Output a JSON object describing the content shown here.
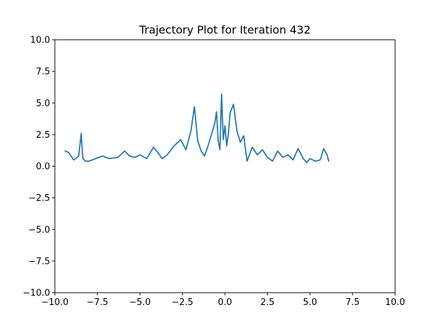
{
  "chart_data": {
    "type": "line",
    "title": "Trajectory Plot for Iteration 432",
    "xlabel": "",
    "ylabel": "",
    "xlim": [
      -10.0,
      10.0
    ],
    "ylim": [
      -10.0,
      10.0
    ],
    "xticks": [
      -10.0,
      -7.5,
      -5.0,
      -2.5,
      0.0,
      2.5,
      5.0,
      7.5,
      10.0
    ],
    "yticks": [
      -10.0,
      -7.5,
      -5.0,
      -2.5,
      0.0,
      2.5,
      5.0,
      7.5,
      10.0
    ],
    "xtick_labels": [
      "−10.0",
      "−7.5",
      "−5.0",
      "−2.5",
      "0.0",
      "2.5",
      "5.0",
      "7.5",
      "10.0"
    ],
    "ytick_labels": [
      "−10.0",
      "−7.5",
      "−5.0",
      "−2.5",
      "0.0",
      "2.5",
      "5.0",
      "7.5",
      "10.0"
    ],
    "grid": false,
    "line_color": "#1f77b4",
    "series": [
      {
        "x": [
          -9.4,
          -9.2,
          -8.9,
          -8.6,
          -8.45,
          -8.4,
          -8.35,
          -8.2,
          -8.0,
          -7.6,
          -7.2,
          -6.8,
          -6.3,
          -5.9,
          -5.6,
          -5.3,
          -5.0,
          -4.6,
          -4.2,
          -3.9,
          -3.7,
          -3.4,
          -3.0,
          -2.6,
          -2.3,
          -2.0,
          -1.8,
          -1.6,
          -1.4,
          -1.2,
          -1.0,
          -0.8,
          -0.6,
          -0.5,
          -0.4,
          -0.3,
          -0.2,
          -0.1,
          0.0,
          0.1,
          0.2,
          0.3,
          0.5,
          0.7,
          0.9,
          1.1,
          1.3,
          1.6,
          1.9,
          2.2,
          2.5,
          2.8,
          3.1,
          3.4,
          3.7,
          4.0,
          4.3,
          4.6,
          4.8,
          5.0,
          5.3,
          5.6,
          5.8,
          6.0,
          6.1
        ],
        "y": [
          1.2,
          1.1,
          0.5,
          0.8,
          2.6,
          1.4,
          0.6,
          0.4,
          0.4,
          0.6,
          0.8,
          0.6,
          0.7,
          1.2,
          0.8,
          0.7,
          0.9,
          0.6,
          1.5,
          1.0,
          0.6,
          0.9,
          1.6,
          2.1,
          1.3,
          2.8,
          4.7,
          2.0,
          1.2,
          0.8,
          1.6,
          2.5,
          3.4,
          4.3,
          2.0,
          1.3,
          5.7,
          2.1,
          3.2,
          1.6,
          2.6,
          4.2,
          4.9,
          2.8,
          1.9,
          2.4,
          0.4,
          1.5,
          0.9,
          1.3,
          0.7,
          0.4,
          1.2,
          0.7,
          0.9,
          0.5,
          1.4,
          0.6,
          0.3,
          0.6,
          0.4,
          0.5,
          1.4,
          0.9,
          0.4
        ]
      }
    ]
  }
}
